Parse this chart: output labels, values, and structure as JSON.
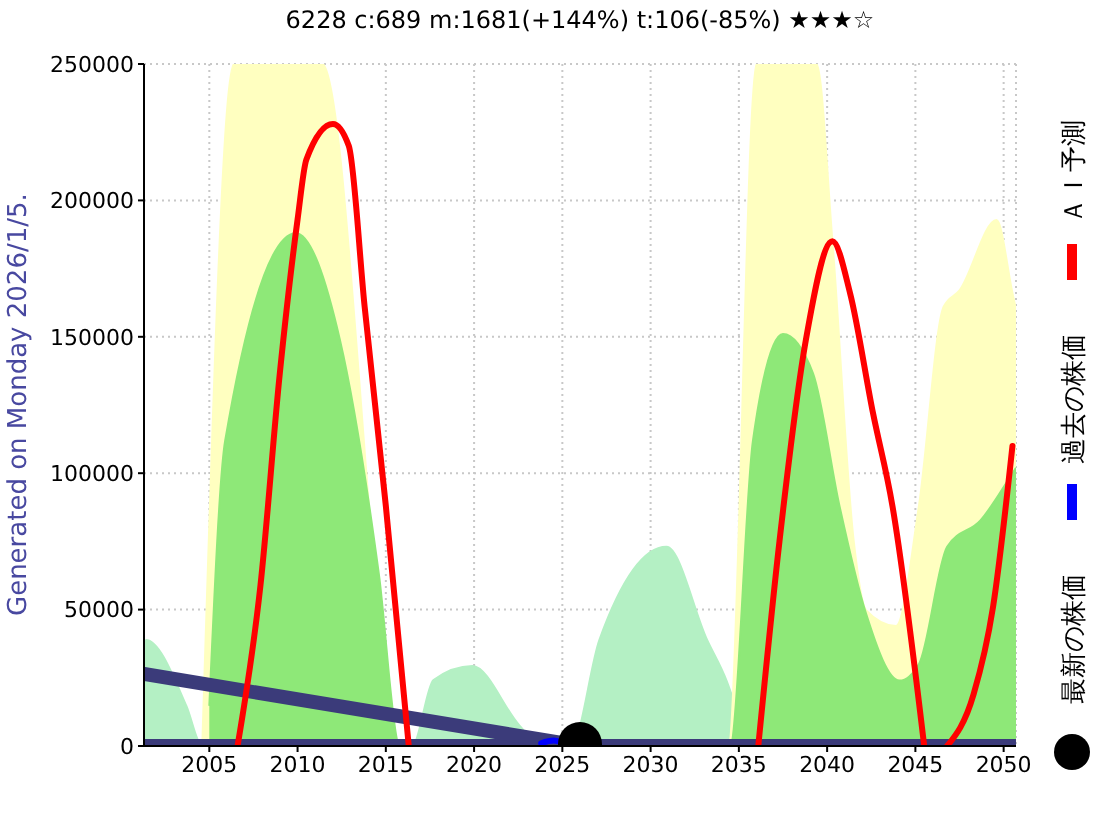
{
  "chart_data": {
    "type": "line",
    "title": "6228 c:689 m:1681(+144%) t:106(-85%) ★★★☆",
    "annotations": [
      "Generated on Monday 2026/1/5."
    ],
    "xlim": [
      2001.3,
      2050.7
    ],
    "xticks": [
      2005,
      2010,
      2015,
      2020,
      2025,
      2030,
      2035,
      2040,
      2045,
      2050
    ],
    "ylim": [
      0,
      250000
    ],
    "yticks": [
      0,
      50000,
      100000,
      150000,
      200000,
      250000
    ],
    "grid": true,
    "legend": "right",
    "line_style": "solid",
    "series": [
      {
        "type": "area",
        "color": "#b4f0c4",
        "x": [
          2001.3,
          2001.4,
          2003.7,
          2004.6,
          2016.5,
          2017.7,
          2019.9,
          2022.6,
          2023.8,
          2025.5,
          2027.1,
          2030.9,
          2033.2,
          2034.3,
          2035.5
        ],
        "values": [
          31500,
          38900,
          14700,
          0,
          0,
          24200,
          29300,
          7300,
          0,
          0,
          38900,
          73000,
          38900,
          24000,
          0
        ]
      },
      {
        "type": "area",
        "color": "#ffffc0",
        "x": [
          2004.6,
          2006.4,
          2011.4,
          2015.8,
          2034.4,
          2036.0,
          2039.4,
          2040.3,
          2041.5,
          2042.2,
          2043.9,
          2045.2,
          2046.6,
          2047.5,
          2049.6,
          2050.5,
          2050.7
        ],
        "values": [
          0,
          250000,
          250000,
          0,
          0,
          250000,
          250000,
          185000,
          75500,
          49800,
          44000,
          88000,
          161000,
          167000,
          192800,
          166000,
          160000
        ]
      },
      {
        "type": "area",
        "color": "#8ee878",
        "x": [
          2005.0,
          2005.9,
          2009.9,
          2012.4,
          2014.6,
          2015.8,
          2034.5,
          2035.8,
          2037.5,
          2039.2,
          2040.7,
          2042.2,
          2044.1,
          2045.2,
          2046.8,
          2048.7,
          2050.5,
          2050.7
        ],
        "values": [
          14700,
          112000,
          188000,
          148800,
          63300,
          0,
          0,
          112000,
          151000,
          136600,
          88000,
          48600,
          24000,
          30000,
          73000,
          82800,
          100000,
          102000
        ]
      },
      {
        "color": "#3b3b7a",
        "x": [
          2001.3,
          2050.7
        ],
        "values": [
          0,
          0
        ]
      },
      {
        "color": "#3b3b7a",
        "x": [
          2001.3,
          2026.0
        ],
        "values": [
          26400,
          0
        ]
      },
      {
        "name": "ＡＩ予測",
        "color": "#ff0000",
        "x": [
          2006.6,
          2007.9,
          2009.0,
          2010.0,
          2010.5,
          2012.0,
          2012.9,
          2013.8,
          2015.0,
          2016.3,
          2026.0,
          2036.1,
          2037.3,
          2038.8,
          2040.3,
          2041.3,
          2042.6,
          2043.7,
          2045.5,
          2046.1,
          2046.8,
          2048.3,
          2049.4,
          2050.5
        ],
        "values": [
          0,
          59000,
          137000,
          193000,
          215000,
          228000,
          220000,
          161000,
          88000,
          0,
          null,
          0,
          75000,
          149000,
          185000,
          166000,
          122000,
          88000,
          0,
          null,
          0,
          19000,
          51000,
          110000
        ]
      },
      {
        "name": "過去の株価",
        "color": "#0000ff",
        "x": [
          2023.8,
          2024.5,
          2025.1
        ],
        "values": [
          1000,
          2000,
          1000
        ]
      },
      {
        "type": "scatter",
        "name": "最新の株価",
        "color": "#000000",
        "marker": "circle",
        "x": [
          2026.0
        ],
        "values": [
          689
        ]
      }
    ]
  }
}
